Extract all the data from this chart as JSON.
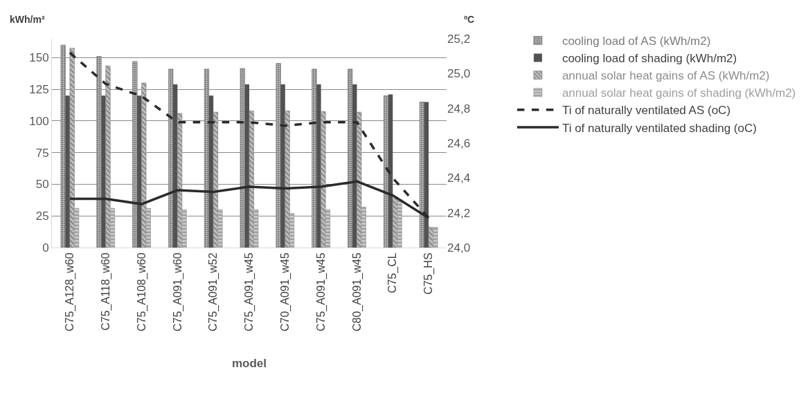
{
  "chart_data": {
    "type": "bar",
    "xlabel": "model",
    "ylabel": "kWh/m²",
    "y2label": "ºC",
    "categories": [
      "C75_A128_w60",
      "C75_A118_w60",
      "C75_A108_w60",
      "C75_A091_w60",
      "C75_A091_w52",
      "C75_A091_w45",
      "C70_A091_w45",
      "C75_A091_w45",
      "C80_A091_w45",
      "C75_CL",
      "C75_HS"
    ],
    "series": [
      {
        "name": "cooling load of AS (kWh/m2)",
        "color": "#7a7a7a",
        "values": [
          160,
          151,
          147,
          141,
          141,
          141.5,
          145.5,
          141,
          141,
          120,
          115
        ]
      },
      {
        "name": "cooling load of shading (kWh/m2)",
        "color": "#525252",
        "values": [
          120,
          120,
          120,
          129,
          120,
          129,
          129,
          129,
          129,
          121,
          115
        ]
      },
      {
        "name": "annual solar heat gains of AS (kWh/m2)",
        "color": "#8c8c8c",
        "values": [
          157.5,
          143.5,
          130,
          106,
          107,
          108,
          108,
          107.5,
          107,
          39,
          16
        ]
      },
      {
        "name": "annual solar heat gains of shading (kWh/m2)",
        "color": "#9e9e9e",
        "values": [
          31,
          31,
          31,
          30,
          30,
          30,
          27,
          30,
          32,
          38,
          16
        ]
      },
      {
        "name": "Ti of naturally ventilated AS (oC)",
        "type": "line",
        "axis": "y2",
        "line_style": "dashed",
        "color": "#2b2b2b",
        "values": [
          25.12,
          24.94,
          24.87,
          24.72,
          24.72,
          24.72,
          24.7,
          24.72,
          24.72,
          24.4,
          24.17
        ]
      },
      {
        "name": "Ti of naturally ventilated shading (oC)",
        "type": "line",
        "axis": "y2",
        "line_style": "solid",
        "color": "#2b2b2b",
        "values": [
          24.28,
          24.28,
          24.25,
          24.33,
          24.32,
          24.35,
          24.34,
          24.35,
          24.38,
          24.3,
          24.17
        ]
      }
    ],
    "ylim": [
      0,
      165
    ],
    "yticks": [
      0,
      25,
      50,
      75,
      100,
      125,
      150
    ],
    "y2lim": [
      24.0,
      25.2
    ],
    "y2ticks": [
      {
        "value": 24.0,
        "label": "24,0"
      },
      {
        "value": 24.2,
        "label": "24,2"
      },
      {
        "value": 24.4,
        "label": "24,4"
      },
      {
        "value": 24.6,
        "label": "24,6"
      },
      {
        "value": 24.8,
        "label": "24,8"
      },
      {
        "value": 25.0,
        "label": "25,0"
      },
      {
        "value": 25.2,
        "label": "25,2"
      }
    ],
    "grid": "y",
    "legend": "right",
    "marker": "none"
  }
}
